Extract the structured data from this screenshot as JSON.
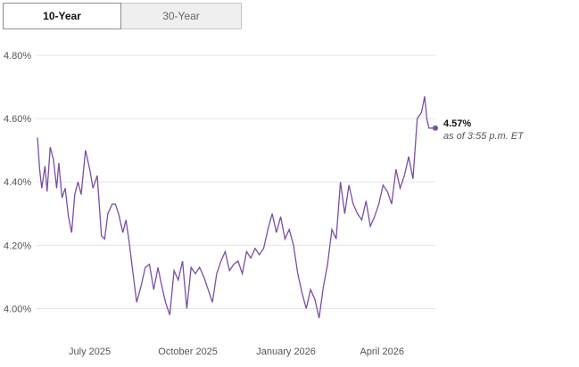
{
  "tabs": [
    {
      "label": "10-Year",
      "active": true
    },
    {
      "label": "30-Year",
      "active": false
    }
  ],
  "latest": {
    "value": "4.57%",
    "as_of": "as of 3:55 p.m. ET"
  },
  "colors": {
    "line": "#7a4fa3",
    "grid": "#e6e6e6",
    "axis_text": "#555555"
  },
  "chart_data": {
    "type": "line",
    "title": "",
    "xlabel": "",
    "ylabel": "",
    "x_tick_labels": [
      "July 2025",
      "October 2025",
      "January 2026",
      "April 2026"
    ],
    "x_tick_dates": [
      "2025-07-01",
      "2025-10-01",
      "2026-01-01",
      "2026-04-01"
    ],
    "y_tick_labels": [
      "4.00%",
      "4.20%",
      "4.40%",
      "4.60%",
      "4.80%"
    ],
    "y_ticks": [
      4.0,
      4.2,
      4.4,
      4.6,
      4.8
    ],
    "ylim": [
      3.9,
      4.8
    ],
    "xlim": [
      "2025-05-13",
      "2026-05-21"
    ],
    "grid": true,
    "series": [
      {
        "x": [
          "2025-05-13",
          "2025-05-15",
          "2025-05-17",
          "2025-05-20",
          "2025-05-22",
          "2025-05-25",
          "2025-05-28",
          "2025-05-31",
          "2025-06-02",
          "2025-06-05",
          "2025-06-08",
          "2025-06-11",
          "2025-06-14",
          "2025-06-17",
          "2025-06-20",
          "2025-06-23",
          "2025-06-27",
          "2025-07-01",
          "2025-07-04",
          "2025-07-08",
          "2025-07-12",
          "2025-07-15",
          "2025-07-18",
          "2025-07-22",
          "2025-07-25",
          "2025-07-28",
          "2025-08-01",
          "2025-08-04",
          "2025-08-07",
          "2025-08-11",
          "2025-08-14",
          "2025-08-18",
          "2025-08-22",
          "2025-08-26",
          "2025-08-30",
          "2025-09-03",
          "2025-09-06",
          "2025-09-10",
          "2025-09-14",
          "2025-09-18",
          "2025-09-22",
          "2025-09-26",
          "2025-09-30",
          "2025-10-04",
          "2025-10-08",
          "2025-10-12",
          "2025-10-16",
          "2025-10-20",
          "2025-10-24",
          "2025-10-28",
          "2025-11-01",
          "2025-11-05",
          "2025-11-09",
          "2025-11-13",
          "2025-11-17",
          "2025-11-21",
          "2025-11-25",
          "2025-11-29",
          "2025-12-03",
          "2025-12-07",
          "2025-12-11",
          "2025-12-15",
          "2025-12-19",
          "2025-12-23",
          "2025-12-27",
          "2025-12-31",
          "2026-01-04",
          "2026-01-08",
          "2026-01-12",
          "2026-01-16",
          "2026-01-20",
          "2026-01-24",
          "2026-01-28",
          "2026-02-01",
          "2026-02-05",
          "2026-02-09",
          "2026-02-13",
          "2026-02-17",
          "2026-02-21",
          "2026-02-25",
          "2026-03-01",
          "2026-03-05",
          "2026-03-09",
          "2026-03-13",
          "2026-03-17",
          "2026-03-21",
          "2026-03-25",
          "2026-03-29",
          "2026-04-02",
          "2026-04-06",
          "2026-04-10",
          "2026-04-14",
          "2026-04-18",
          "2026-04-22",
          "2026-04-26",
          "2026-04-30",
          "2026-05-04",
          "2026-05-08",
          "2026-05-11",
          "2026-05-13",
          "2026-05-15",
          "2026-05-18",
          "2026-05-21"
        ],
        "values": [
          4.54,
          4.44,
          4.38,
          4.45,
          4.37,
          4.51,
          4.47,
          4.38,
          4.46,
          4.35,
          4.38,
          4.29,
          4.24,
          4.36,
          4.4,
          4.36,
          4.5,
          4.44,
          4.38,
          4.42,
          4.23,
          4.22,
          4.3,
          4.33,
          4.33,
          4.3,
          4.24,
          4.28,
          4.21,
          4.1,
          4.02,
          4.07,
          4.13,
          4.14,
          4.06,
          4.13,
          4.08,
          4.02,
          3.98,
          4.12,
          4.09,
          4.15,
          4.0,
          4.13,
          4.11,
          4.13,
          4.1,
          4.06,
          4.02,
          4.11,
          4.15,
          4.18,
          4.12,
          4.14,
          4.15,
          4.11,
          4.18,
          4.16,
          4.19,
          4.17,
          4.19,
          4.25,
          4.3,
          4.24,
          4.29,
          4.22,
          4.25,
          4.2,
          4.11,
          4.05,
          4.0,
          4.06,
          4.03,
          3.97,
          4.07,
          4.14,
          4.25,
          4.22,
          4.4,
          4.3,
          4.39,
          4.33,
          4.3,
          4.28,
          4.34,
          4.26,
          4.29,
          4.33,
          4.39,
          4.37,
          4.33,
          4.44,
          4.38,
          4.42,
          4.48,
          4.41,
          4.6,
          4.62,
          4.67,
          4.6,
          4.57,
          4.57,
          4.57
        ]
      }
    ]
  }
}
